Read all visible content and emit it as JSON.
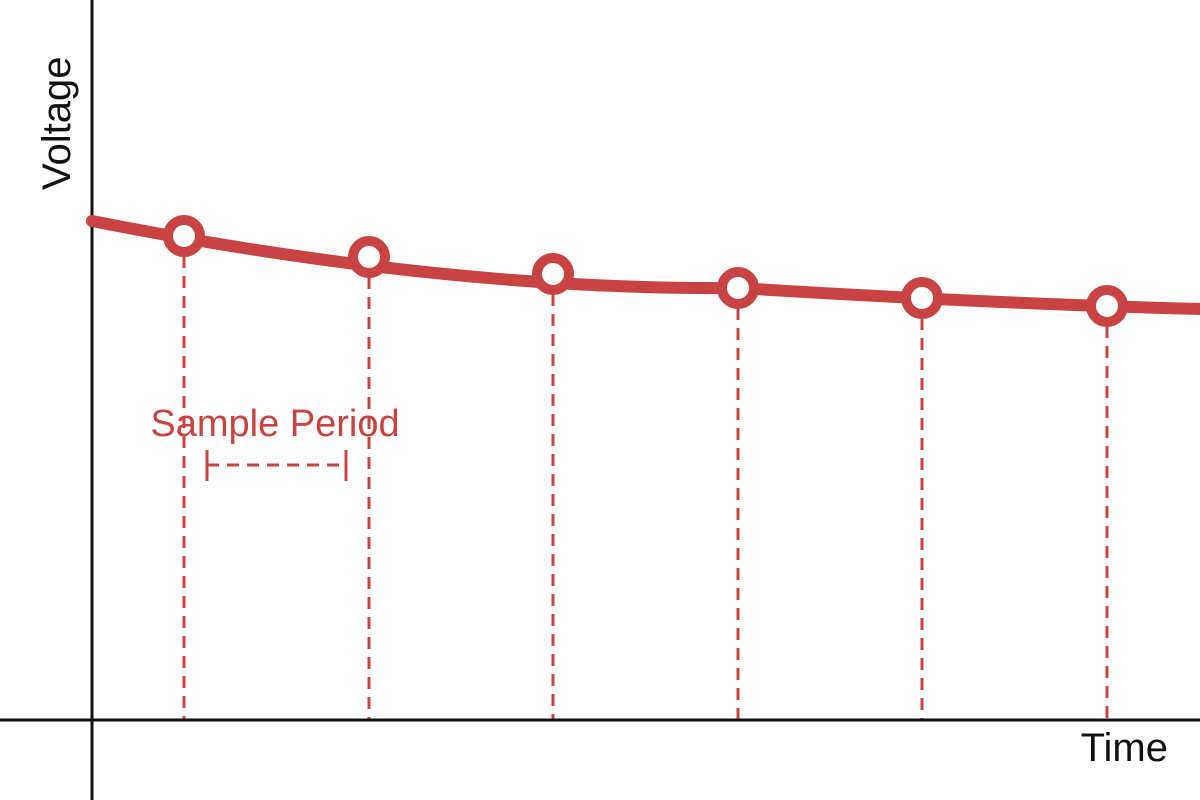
{
  "axes": {
    "x_label": "Time",
    "y_label": "Voltage"
  },
  "annotation": {
    "label": "Sample Period"
  },
  "signal": {
    "description_type": "decaying curve",
    "sample_count": 6
  },
  "colors": {
    "axis": "#111111",
    "signal": "#c94343",
    "marker_fill": "#ffffff"
  }
}
